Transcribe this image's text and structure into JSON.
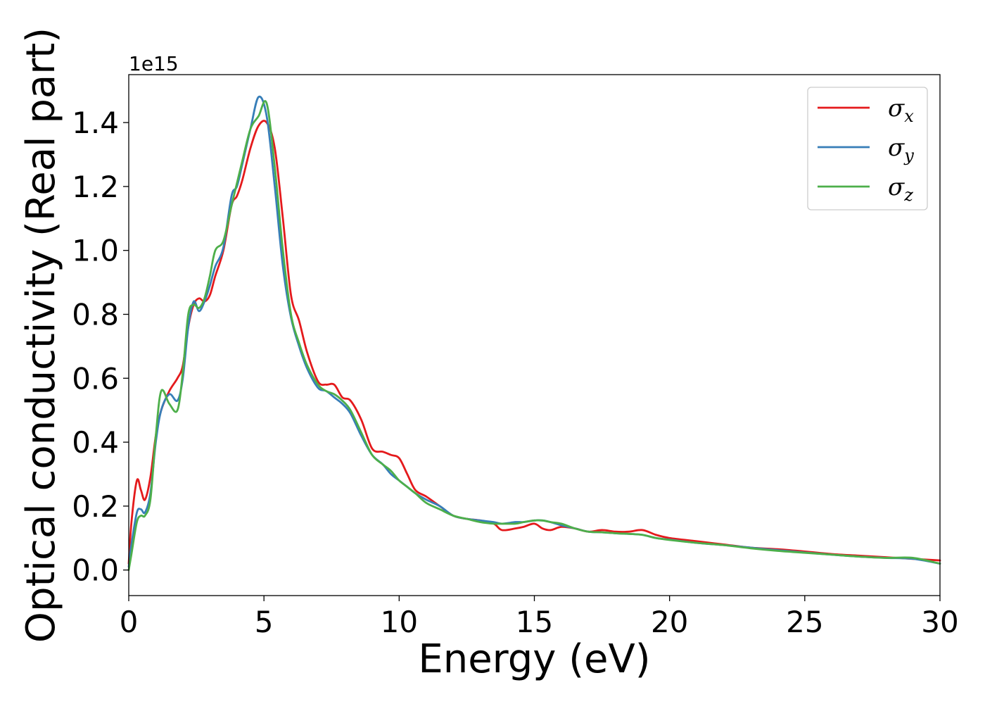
{
  "chart_data": {
    "type": "line",
    "title": "",
    "xlabel": "Energy (eV)",
    "ylabel": "Optical conductivity (Real part)",
    "y_offset_label": "1e15",
    "xlim": [
      0,
      30
    ],
    "ylim": [
      -0.08,
      1.55
    ],
    "xticks": [
      0,
      5,
      10,
      15,
      20,
      25,
      30
    ],
    "xtick_labels": [
      "0",
      "5",
      "10",
      "15",
      "20",
      "25",
      "30"
    ],
    "yticks": [
      0.0,
      0.2,
      0.4,
      0.6,
      0.8,
      1.0,
      1.2,
      1.4
    ],
    "ytick_labels": [
      "0.0",
      "0.2",
      "0.4",
      "0.6",
      "0.8",
      "1.0",
      "1.2",
      "1.4"
    ],
    "grid": false,
    "legend_position": "top-right",
    "series": [
      {
        "name": "σx",
        "symbol": "σ",
        "subscript": "x",
        "color": "#e41a1c",
        "x": [
          0,
          0.1,
          0.3,
          0.45,
          0.6,
          0.8,
          1.0,
          1.2,
          1.5,
          1.8,
          2.0,
          2.2,
          2.4,
          2.6,
          2.8,
          3.0,
          3.2,
          3.5,
          3.8,
          4.0,
          4.2,
          4.5,
          4.8,
          5.1,
          5.4,
          5.7,
          6.0,
          6.3,
          6.6,
          7.0,
          7.3,
          7.6,
          7.9,
          8.2,
          8.6,
          9.0,
          9.4,
          9.7,
          10.0,
          10.3,
          10.6,
          11.0,
          11.5,
          12.0,
          12.5,
          13.0,
          13.5,
          13.8,
          14.3,
          14.6,
          15.0,
          15.3,
          15.6,
          16.0,
          16.5,
          17.0,
          17.5,
          18.0,
          18.5,
          19.0,
          19.5,
          20.0,
          21.0,
          22.0,
          23.0,
          24.0,
          25.0,
          26.0,
          27.0,
          28.0,
          29.0,
          30.0
        ],
        "values": [
          0.02,
          0.15,
          0.28,
          0.25,
          0.22,
          0.29,
          0.42,
          0.5,
          0.56,
          0.6,
          0.64,
          0.76,
          0.83,
          0.85,
          0.84,
          0.86,
          0.92,
          1.0,
          1.14,
          1.17,
          1.22,
          1.32,
          1.39,
          1.4,
          1.32,
          1.1,
          0.86,
          0.78,
          0.68,
          0.59,
          0.58,
          0.58,
          0.54,
          0.53,
          0.47,
          0.38,
          0.37,
          0.36,
          0.35,
          0.3,
          0.25,
          0.23,
          0.2,
          0.17,
          0.16,
          0.155,
          0.145,
          0.125,
          0.13,
          0.135,
          0.145,
          0.13,
          0.125,
          0.135,
          0.13,
          0.12,
          0.125,
          0.12,
          0.12,
          0.125,
          0.11,
          0.1,
          0.09,
          0.08,
          0.07,
          0.065,
          0.058,
          0.05,
          0.045,
          0.04,
          0.035,
          0.03
        ]
      },
      {
        "name": "σy",
        "symbol": "σ",
        "subscript": "y",
        "color": "#377eb8",
        "x": [
          0,
          0.1,
          0.3,
          0.45,
          0.6,
          0.8,
          1.0,
          1.2,
          1.5,
          1.8,
          2.0,
          2.2,
          2.4,
          2.6,
          2.8,
          3.0,
          3.2,
          3.5,
          3.8,
          4.0,
          4.2,
          4.5,
          4.8,
          5.1,
          5.4,
          5.7,
          6.0,
          6.3,
          6.6,
          7.0,
          7.3,
          7.6,
          7.9,
          8.2,
          8.6,
          9.0,
          9.4,
          9.7,
          10.0,
          10.3,
          10.6,
          11.0,
          11.5,
          12.0,
          12.5,
          13.0,
          13.5,
          13.8,
          14.3,
          14.6,
          15.0,
          15.3,
          15.6,
          16.0,
          16.5,
          17.0,
          17.5,
          18.0,
          18.5,
          19.0,
          19.5,
          20.0,
          21.0,
          22.0,
          23.0,
          24.0,
          25.0,
          26.0,
          27.0,
          28.0,
          29.0,
          30.0
        ],
        "values": [
          0.01,
          0.08,
          0.18,
          0.19,
          0.18,
          0.24,
          0.4,
          0.5,
          0.55,
          0.53,
          0.6,
          0.76,
          0.84,
          0.81,
          0.84,
          0.89,
          0.95,
          1.01,
          1.17,
          1.2,
          1.27,
          1.38,
          1.48,
          1.42,
          1.2,
          0.95,
          0.79,
          0.7,
          0.63,
          0.57,
          0.56,
          0.54,
          0.52,
          0.49,
          0.42,
          0.36,
          0.33,
          0.3,
          0.28,
          0.26,
          0.24,
          0.22,
          0.2,
          0.17,
          0.16,
          0.155,
          0.15,
          0.145,
          0.15,
          0.15,
          0.155,
          0.155,
          0.15,
          0.14,
          0.13,
          0.12,
          0.118,
          0.115,
          0.113,
          0.11,
          0.1,
          0.095,
          0.085,
          0.078,
          0.07,
          0.062,
          0.055,
          0.048,
          0.042,
          0.038,
          0.035,
          0.02
        ]
      },
      {
        "name": "σz",
        "symbol": "σ",
        "subscript": "z",
        "color": "#4daf4a",
        "x": [
          0,
          0.1,
          0.3,
          0.45,
          0.6,
          0.8,
          1.0,
          1.2,
          1.5,
          1.8,
          2.0,
          2.2,
          2.4,
          2.6,
          2.8,
          3.0,
          3.2,
          3.5,
          3.8,
          4.0,
          4.2,
          4.5,
          4.8,
          5.1,
          5.4,
          5.7,
          6.0,
          6.3,
          6.6,
          7.0,
          7.3,
          7.6,
          7.9,
          8.2,
          8.6,
          9.0,
          9.4,
          9.7,
          10.0,
          10.3,
          10.6,
          11.0,
          11.5,
          12.0,
          12.5,
          13.0,
          13.5,
          13.8,
          14.3,
          14.6,
          15.0,
          15.3,
          15.6,
          16.0,
          16.5,
          17.0,
          17.5,
          18.0,
          18.5,
          19.0,
          19.5,
          20.0,
          21.0,
          22.0,
          23.0,
          24.0,
          25.0,
          26.0,
          27.0,
          28.0,
          29.0,
          30.0
        ],
        "values": [
          0.0,
          0.05,
          0.15,
          0.17,
          0.17,
          0.22,
          0.42,
          0.56,
          0.52,
          0.5,
          0.62,
          0.8,
          0.83,
          0.82,
          0.85,
          0.92,
          1.0,
          1.03,
          1.14,
          1.21,
          1.28,
          1.38,
          1.42,
          1.46,
          1.26,
          1.0,
          0.8,
          0.71,
          0.64,
          0.58,
          0.56,
          0.55,
          0.53,
          0.5,
          0.43,
          0.36,
          0.33,
          0.31,
          0.28,
          0.26,
          0.24,
          0.21,
          0.19,
          0.17,
          0.16,
          0.15,
          0.145,
          0.145,
          0.145,
          0.15,
          0.155,
          0.155,
          0.15,
          0.145,
          0.13,
          0.12,
          0.118,
          0.115,
          0.113,
          0.11,
          0.1,
          0.094,
          0.085,
          0.078,
          0.068,
          0.06,
          0.054,
          0.048,
          0.042,
          0.038,
          0.038,
          0.02
        ]
      }
    ]
  }
}
